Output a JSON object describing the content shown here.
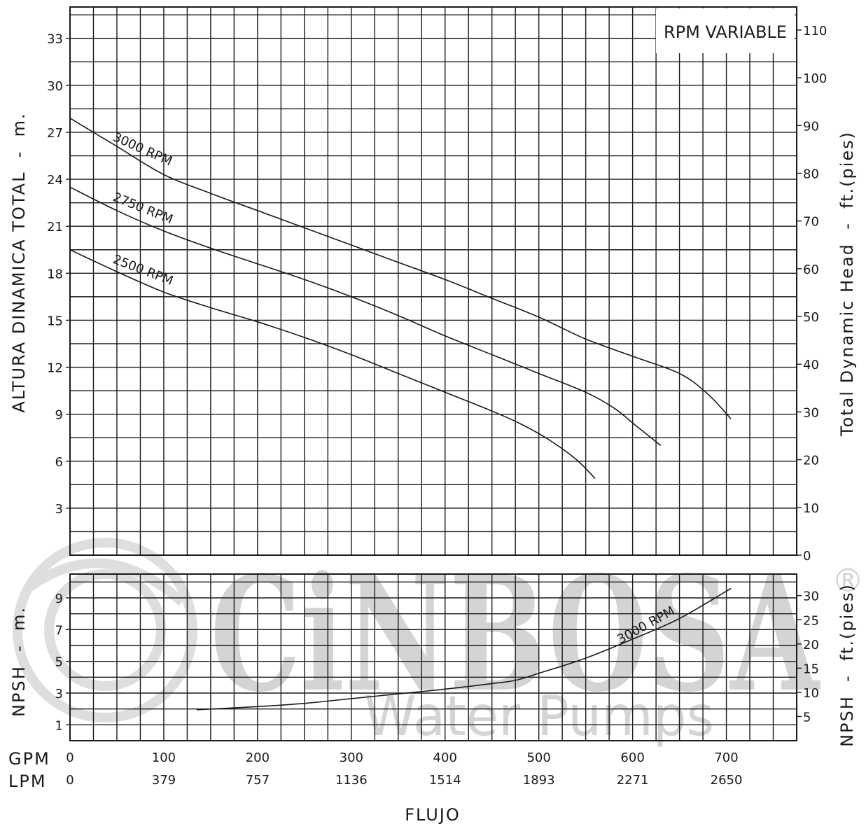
{
  "watermark": {
    "brand": "CiNBOSA",
    "registered": "®",
    "tagline": "Water Pumps"
  },
  "chart_data": [
    {
      "type": "line",
      "title": "RPM VARIABLE",
      "ylabel": "ALTURA DINAMICA TOTAL  -  m.",
      "y2label": "Total Dynamic Head  -  ft.(pies)",
      "xlim": [
        0,
        775
      ],
      "ylim": [
        0,
        35
      ],
      "yticks": [
        3,
        6,
        9,
        12,
        15,
        18,
        21,
        24,
        27,
        30,
        33
      ],
      "y2ticks": [
        0,
        10,
        20,
        30,
        40,
        50,
        60,
        70,
        80,
        90,
        100,
        110
      ],
      "grid": true,
      "series": [
        {
          "name": "3000 RPM",
          "points": [
            [
              0,
              27.9
            ],
            [
              25,
              27.0
            ],
            [
              50,
              26.1
            ],
            [
              100,
              24.3
            ],
            [
              150,
              23.1
            ],
            [
              200,
              22.0
            ],
            [
              250,
              20.9
            ],
            [
              300,
              19.8
            ],
            [
              350,
              18.7
            ],
            [
              400,
              17.6
            ],
            [
              450,
              16.4
            ],
            [
              500,
              15.2
            ],
            [
              550,
              13.8
            ],
            [
              600,
              12.7
            ],
            [
              650,
              11.6
            ],
            [
              680,
              10.3
            ],
            [
              705,
              8.7
            ]
          ]
        },
        {
          "name": "2750 RPM",
          "points": [
            [
              0,
              23.5
            ],
            [
              50,
              22.0
            ],
            [
              100,
              20.7
            ],
            [
              150,
              19.6
            ],
            [
              200,
              18.6
            ],
            [
              250,
              17.6
            ],
            [
              300,
              16.5
            ],
            [
              350,
              15.3
            ],
            [
              400,
              14.0
            ],
            [
              450,
              12.8
            ],
            [
              500,
              11.6
            ],
            [
              550,
              10.4
            ],
            [
              580,
              9.4
            ],
            [
              605,
              8.2
            ],
            [
              630,
              7.0
            ]
          ]
        },
        {
          "name": "2500 RPM",
          "points": [
            [
              0,
              19.5
            ],
            [
              50,
              18.1
            ],
            [
              100,
              16.8
            ],
            [
              150,
              15.8
            ],
            [
              200,
              14.9
            ],
            [
              250,
              13.9
            ],
            [
              300,
              12.8
            ],
            [
              350,
              11.6
            ],
            [
              400,
              10.4
            ],
            [
              450,
              9.2
            ],
            [
              480,
              8.4
            ],
            [
              510,
              7.4
            ],
            [
              540,
              6.1
            ],
            [
              560,
              4.9
            ]
          ]
        }
      ],
      "annotations": [
        "RPM VARIABLE"
      ]
    },
    {
      "type": "line",
      "ylabel": "NPSH  -  m.",
      "y2label": "NPSH  -  ft.(pies)",
      "xlabel": "FLUJO",
      "xlim": [
        0,
        775
      ],
      "ylim": [
        0,
        10.5
      ],
      "yticks": [
        1,
        3,
        5,
        7,
        9
      ],
      "y2ticks": [
        5,
        10,
        15,
        20,
        25,
        30
      ],
      "x_gpm_ticks": [
        "0",
        "100",
        "200",
        "300",
        "400",
        "500",
        "600",
        "700"
      ],
      "x_lpm_ticks": [
        "0",
        "379",
        "757",
        "1136",
        "1514",
        "1893",
        "2271",
        "2650"
      ],
      "x_row_labels": [
        "GPM",
        "LPM"
      ],
      "grid": true,
      "series": [
        {
          "name": "3000 RPM",
          "points": [
            [
              135,
              1.95
            ],
            [
              200,
              2.15
            ],
            [
              250,
              2.35
            ],
            [
              300,
              2.65
            ],
            [
              350,
              2.95
            ],
            [
              400,
              3.25
            ],
            [
              450,
              3.6
            ],
            [
              475,
              3.8
            ],
            [
              500,
              4.25
            ],
            [
              550,
              5.2
            ],
            [
              600,
              6.4
            ],
            [
              650,
              7.7
            ],
            [
              705,
              9.6
            ]
          ]
        }
      ]
    }
  ]
}
